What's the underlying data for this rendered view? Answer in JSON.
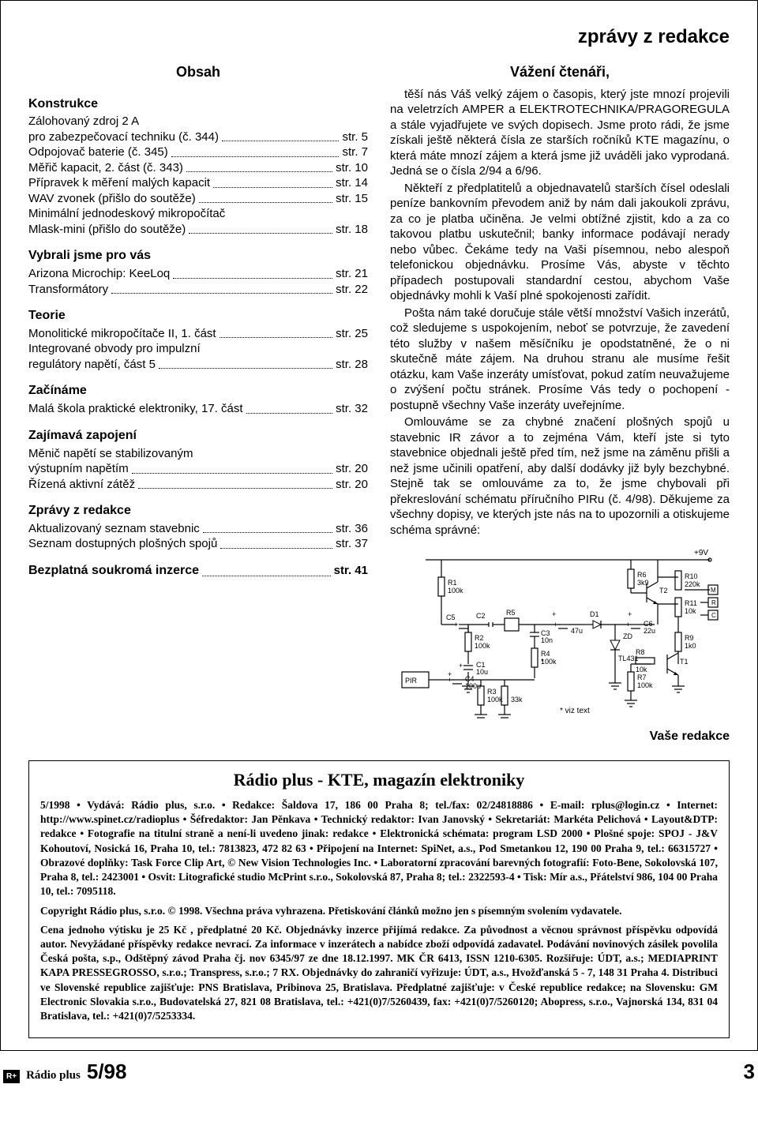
{
  "header": {
    "rubric": "zprávy z redakce"
  },
  "obsah": {
    "title": "Obsah",
    "sections": [
      {
        "heading": "Konstrukce",
        "items": [
          {
            "lines": [
              "Zálohovaný zdroj 2 A",
              "pro zabezpečovací techniku (č. 344)"
            ],
            "page": "str. 5"
          },
          {
            "lines": [
              "Odpojovač baterie (č. 345)"
            ],
            "page": "str. 7"
          },
          {
            "lines": [
              "Měřič kapacit, 2. část (č. 343)"
            ],
            "page": "str. 10"
          },
          {
            "lines": [
              "Přípravek k měření malých kapacit"
            ],
            "page": "str. 14"
          },
          {
            "lines": [
              "WAV zvonek (přišlo do soutěže)"
            ],
            "page": "str. 15"
          },
          {
            "lines": [
              "Minimální jednodeskový mikropočítač",
              "Mlask-mini (přišlo do soutěže)"
            ],
            "page": "str. 18"
          }
        ]
      },
      {
        "heading": "Vybrali jsme pro vás",
        "items": [
          {
            "lines": [
              "Arizona Microchip: KeeLoq"
            ],
            "page": "str. 21"
          },
          {
            "lines": [
              "Transformátory"
            ],
            "page": "str. 22"
          }
        ]
      },
      {
        "heading": "Teorie",
        "items": [
          {
            "lines": [
              "Monolitické mikropočítače II, 1. část"
            ],
            "page": "str. 25"
          },
          {
            "lines": [
              "Integrované obvody pro impulzní",
              "regulátory napětí, část 5"
            ],
            "page": "str. 28"
          }
        ]
      },
      {
        "heading": "Začínáme",
        "items": [
          {
            "lines": [
              "Malá škola praktické elektroniky, 17. část"
            ],
            "page": "str. 32"
          }
        ]
      },
      {
        "heading": "Zajímavá zapojení",
        "items": [
          {
            "lines": [
              "Měnič napětí se stabilizovaným",
              "výstupním napětím"
            ],
            "page": "str. 20"
          },
          {
            "lines": [
              "Řízená aktivní zátěž"
            ],
            "page": "str. 20"
          }
        ]
      },
      {
        "heading": "Zprávy z redakce",
        "items": [
          {
            "lines": [
              "Aktualizovaný seznam stavebnic"
            ],
            "page": "str. 36"
          },
          {
            "lines": [
              "Seznam dostupných plošných spojů"
            ],
            "page": "str. 37"
          }
        ]
      },
      {
        "heading": "Bezplatná soukromá inzerce",
        "inline_page": "str. 41"
      }
    ]
  },
  "editorial": {
    "title": "Vážení čtenáři,",
    "paragraphs": [
      "těší nás Váš velký zájem o časopis, který jste mnozí projevili na veletrzích AMPER a ELEKTROTECHNIKA/PRAGOREGULA a stále vyjadřujete ve svých dopisech. Jsme proto rádi, že jsme získali ještě některá čísla ze starších ročníků KTE magazínu, o která máte mnozí zájem a která jsme již uváděli jako vyprodaná. Jedná se o čísla 2/94 a 6/96.",
      "Někteří z předplatitelů a objednavatelů starších čísel odeslali peníze bankovním převodem aniž by nám dali jakoukoli zprávu, za co je platba učiněna. Je velmi obtížné zjistit, kdo a za co takovou platbu uskutečnil; banky informace podávají nerady nebo vůbec. Čekáme tedy na Vaši písemnou, nebo alespoň telefonickou objednávku. Prosíme Vás, abyste v těchto případech postupovali standardní cestou, abychom Vaše objednávky mohli k Vaší plné spokojenosti zařídit.",
      "Pošta nám také doručuje stále větší množství Vašich inzerátů, což sledujeme s uspokojením, neboť se potvrzuje, že zavedení této služby v našem měsíčníku je opodstatněné, že o ni skutečně máte zájem. Na druhou stranu ale musíme řešit otázku, kam Vaše inzeráty umísťovat, pokud zatím neuvažujeme o zvýšení počtu stránek. Prosíme Vás tedy o pochopení - postupně všechny Vaše inzeráty uveřejníme.",
      "Omlouváme se za chybné značení plošných spojů u stavebnic IR závor a to zejména Vám, kteří jste si tyto stavebnice objednali ještě před tím, než jsme na záměnu přišli a než jsme učinili opatření, aby další dodávky již byly bezchybné. Stejně tak se omlouváme za to, že jsme chybovali při překreslování schématu příručního PIRu (č. 4/98). Děkujeme za všechny dopisy, ve kterých jste nás na to upozornili a otiskujeme schéma správné:"
    ],
    "signature": "Vaše redakce",
    "diagram": {
      "type": "circuit-schematic",
      "supply": "+9V",
      "components": {
        "R1": "100k",
        "R2": "100k",
        "R3": "100k",
        "R4": "100k",
        "R5": "",
        "R6": "3k9",
        "R7": "100k",
        "R8": "10k",
        "R9": "1k0",
        "R10": "220k",
        "R11": "10k",
        "C1": "10u",
        "C2": "",
        "C3": "10n",
        "C4": "100u",
        "C5": "",
        "C6": "22u",
        "U1": "TL431",
        "T1": "",
        "T2": "",
        "D1": "",
        "ZD": "",
        "PIR": "PIR",
        "47u": "47u",
        "33k": "33k",
        "M": "M",
        "R": "R",
        "C": "C"
      },
      "note": "* viz text",
      "colors": {
        "stroke": "#000000",
        "background": "#ffffff",
        "text": "#000000"
      }
    }
  },
  "imprint": {
    "title": "Rádio plus - KTE, magazín elektroniky",
    "body_html": "5/1998 • Vydává: Rádio plus, s.r.o. • Redakce: Šaldova 17, 186 00 Praha 8; tel./fax: 02/24818886 • E-mail: rplus@login.cz • Internet: http://www.spinet.cz/radioplus • Šéfredaktor: Jan Pěnkava • Technický redaktor: Ivan Janovský • Sekretariát: Markéta Pelichová • Layout&DTP: redakce • Fotografie na titulní straně a není-li uvedeno jinak: redakce • Elektronická schémata: program LSD 2000 • Plošné spoje: SPOJ - J&V Kohoutoví, Nosická 16, Praha 10, tel.: 7813823, 472 82 63 • Připojení na Internet: SpiNet, a.s., Pod Smetankou 12, 190 00 Praha 9, tel.: 66315727 • Obrazové doplňky: Task Force Clip Art, © New Vision Technologies Inc. • Laboratorní zpracování barevných fotografií: Foto-Bene, Sokolovská 107, Praha 8, tel.: 2423001 • Osvit: Litografické studio McPrint s.r.o., Sokolovská 87, Praha 8; tel.: 2322593-4 • Tisk: Mír a.s., Přátelství 986, 104 00 Praha 10, tel.: 7095118.",
    "copyright": "Copyright Rádio plus, s.r.o. © 1998. Všechna práva vyhrazena. Přetiskování článků možno jen s písemným svolením vydavatele.",
    "pricing": "Cena jednoho výtisku je 25 Kč , předplatné 20 Kč. Objednávky inzerce přijímá redakce. Za původnost a věcnou správnost příspěvku odpovídá autor. Nevyžádané příspěvky redakce nevrací. Za informace v inzerátech a nabídce zboží odpovídá zadavatel. Podávání novinových zásilek povolila Česká pošta, s.p., Odštěpný závod Praha čj. nov 6345/97 ze dne 18.12.1997. MK ČR 6413, ISSN 1210-6305. Rozšiřuje: ÚDT, a.s.; MEDIAPRINT KAPA PRESSEGROSSO, s.r.o.; Transpress, s.r.o.; 7 RX. Objednávky do zahraničí vyřizuje: ÚDT, a.s., Hvožďanská 5 - 7, 148 31 Praha 4. Distribuci ve Slovenské republice zajišťuje: PNS Bratislava, Pribinova 25, Bratislava. Předplatné zajišťuje: v České republice redakce; na Slovensku: GM Electronic Slovakia s.r.o., Budovatelská 27, 821 08 Bratislava, tel.: +421(0)7/5260439, fax: +421(0)7/5260120; Abopress, s.r.o., Vajnorská 134, 831 04 Bratislava, tel.: +421(0)7/5253334."
  },
  "footer": {
    "logo": "R+",
    "brand": "Rádio plus",
    "issue": "5/98",
    "page": "3"
  }
}
